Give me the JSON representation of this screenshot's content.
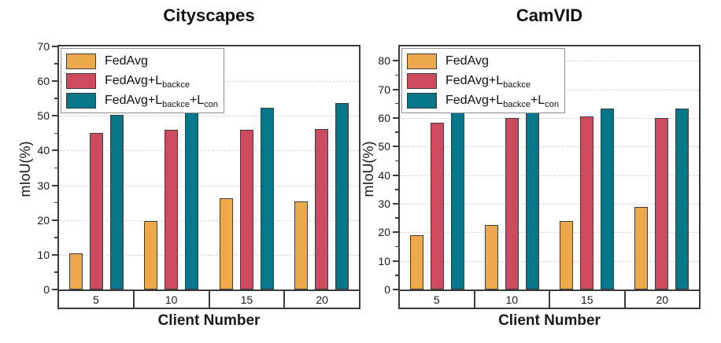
{
  "style": {
    "frame_color": "#3C3C3C",
    "grid_color": "#D6D6D6",
    "bar_border_color": "#3D3D3D",
    "text_color": "#1A1A1A",
    "background": "#FFFFFF"
  },
  "chart_data": [
    {
      "type": "bar",
      "title": "Cityscapes",
      "xlabel": "Client Number",
      "ylabel": "mIoU(%)",
      "ylim": [
        0,
        70
      ],
      "yticks": [
        0,
        10,
        20,
        30,
        40,
        50,
        60,
        70
      ],
      "ytick_step": 10,
      "minor_tick_step": 5,
      "grid": "dashed-horizontal-major",
      "legend_position": "top-left",
      "categories": [
        "5",
        "10",
        "15",
        "20"
      ],
      "series": [
        {
          "name": "FedAvg",
          "color": "#EBA94B",
          "values": [
            10.5,
            19.6,
            26.3,
            25.3
          ],
          "label_parts": [
            {
              "text": "FedAvg",
              "sub": false
            }
          ]
        },
        {
          "name": "FedAvg+L_backce",
          "color": "#CE4A5E",
          "values": [
            45.0,
            46.1,
            46.0,
            46.3
          ],
          "label_parts": [
            {
              "text": "FedAvg+L",
              "sub": false
            },
            {
              "text": "backce",
              "sub": true
            }
          ]
        },
        {
          "name": "FedAvg+L_backce+L_con",
          "color": "#06768A",
          "values": [
            50.2,
            52.5,
            52.4,
            53.8
          ],
          "label_parts": [
            {
              "text": "FedAvg+L",
              "sub": false
            },
            {
              "text": "backce",
              "sub": true
            },
            {
              "text": "+L",
              "sub": false
            },
            {
              "text": "con",
              "sub": true
            }
          ]
        }
      ]
    },
    {
      "type": "bar",
      "title": "CamVID",
      "xlabel": "Client Number",
      "ylabel": "mIoU(%)",
      "ylim": [
        0,
        85
      ],
      "yticks": [
        0,
        10,
        20,
        30,
        40,
        50,
        60,
        70,
        80
      ],
      "ytick_step": 10,
      "minor_tick_step": 5,
      "grid": "dashed-horizontal-major",
      "legend_position": "top-left",
      "categories": [
        "5",
        "10",
        "15",
        "20"
      ],
      "series": [
        {
          "name": "FedAvg",
          "color": "#EBA94B",
          "values": [
            19.1,
            22.6,
            23.9,
            28.9
          ],
          "label_parts": [
            {
              "text": "FedAvg",
              "sub": false
            }
          ]
        },
        {
          "name": "FedAvg+L_backce",
          "color": "#CE4A5E",
          "values": [
            58.3,
            60.0,
            60.4,
            60.1
          ],
          "label_parts": [
            {
              "text": "FedAvg+L",
              "sub": false
            },
            {
              "text": "backce",
              "sub": true
            }
          ]
        },
        {
          "name": "FedAvg+L_backce+L_con",
          "color": "#06768A",
          "values": [
            63.4,
            63.4,
            63.2,
            63.2
          ],
          "label_parts": [
            {
              "text": "FedAvg+L",
              "sub": false
            },
            {
              "text": "backce",
              "sub": true
            },
            {
              "text": "+L",
              "sub": false
            },
            {
              "text": "con",
              "sub": true
            }
          ]
        }
      ]
    }
  ]
}
